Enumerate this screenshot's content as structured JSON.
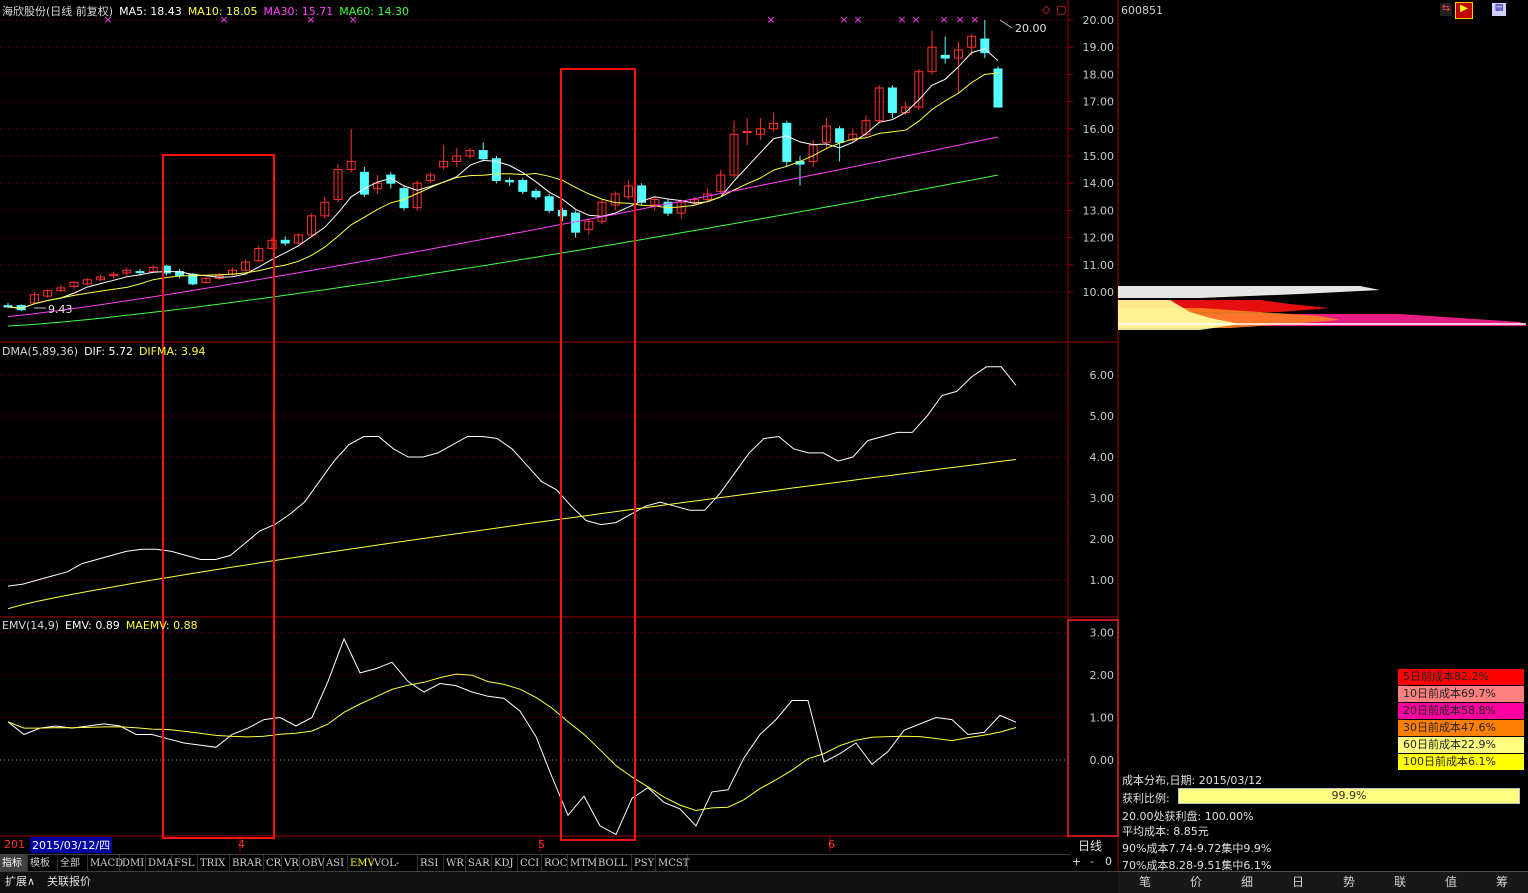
{
  "main_legend": {
    "title": "海欣股份(日线 前复权)",
    "ma5": "MA5: 18.43",
    "ma10": "MA10: 18.05",
    "ma30": "MA30: 15.71",
    "ma60": "MA60: 14.30"
  },
  "dma_legend": {
    "name": "DMA(5,89,36)",
    "dif": "DIF: 5.72",
    "difma": "DIFMA: 3.94"
  },
  "emv_legend": {
    "name": "EMV(14,9)",
    "emv": "EMV: 0.89",
    "maemv": "MAEMV: 0.88"
  },
  "price_axis": [
    "20.00",
    "19.00",
    "18.00",
    "17.00",
    "16.00",
    "15.00",
    "14.00",
    "13.00",
    "12.00",
    "11.00",
    "10.00"
  ],
  "dma_axis": [
    "6.00",
    "5.00",
    "4.00",
    "3.00",
    "2.00",
    "1.00"
  ],
  "emv_axis": [
    "3.00",
    "2.00",
    "1.00",
    "0.00"
  ],
  "annotations": {
    "high": "20.00",
    "low": "9.43"
  },
  "date_bar": {
    "year_cut": "201",
    "current_date": "2015/03/12/四",
    "months": [
      "4",
      "5",
      "6"
    ],
    "period": "日线"
  },
  "indicator_tabs": [
    "指标",
    "模板",
    "全部",
    "MACD",
    "DMI",
    "DMA",
    "FSL",
    "TRIX",
    "BRAR",
    "CR",
    "VR",
    "OBV",
    "ASI",
    "EMV",
    "VOL-TDX",
    "RSI",
    "WR",
    "SAR",
    "KDJ",
    "CCI",
    "ROC",
    "MTM",
    "BOLL",
    "PSY",
    "MCST"
  ],
  "active_tab": "EMV",
  "bottom_buttons": [
    "扩展∧",
    "关联报价"
  ],
  "zoom_controls": [
    "+",
    "-",
    "0"
  ],
  "stock_code": "600851",
  "cost_dist": {
    "boxes": [
      {
        "label": "5日前成本82.2%",
        "color": "#ff0000"
      },
      {
        "label": "10日前成本69.7%",
        "color": "#ff8080"
      },
      {
        "label": "20日前成本58.8%",
        "color": "#ff00a0"
      },
      {
        "label": "30日前成本47.6%",
        "color": "#ff8000"
      },
      {
        "label": "60日前成本22.9%",
        "color": "#ffff80"
      },
      {
        "label": "100日前成本6.1%",
        "color": "#ffff00"
      }
    ],
    "date_line": "成本分布,日期: 2015/03/12",
    "profit_label": "获利比例:",
    "profit_value": "99.9%",
    "profit_ratio": 0.999,
    "line_20": "20.00处获利盘: 100.00%",
    "avg_cost": "平均成本: 8.85元",
    "c90": "90%成本7.74-9.72集中9.9%",
    "c70": "70%成本8.28-9.51集中6.1%"
  },
  "right_tabs": [
    "笔",
    "价",
    "细",
    "日",
    "势",
    "联",
    "值",
    "筹"
  ],
  "colors": {
    "up": "#ff3030",
    "down": "#54ffff",
    "ma5": "#ffffff",
    "ma10": "#ffff40",
    "ma30": "#ff40ff",
    "ma60": "#40ff40",
    "grid": "#800000"
  }
}
